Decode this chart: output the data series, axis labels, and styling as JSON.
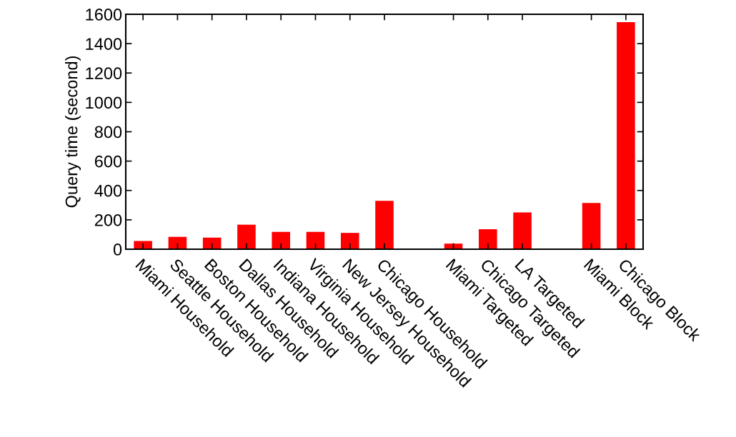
{
  "chart_data": {
    "type": "bar",
    "ylabel": "Query time (second)",
    "categories": [
      "Miami Household",
      "Seattle Household",
      "Boston Household",
      "Dallas Household",
      "Indiana Household",
      "Virginia Household",
      "New Jersey Household",
      "Chicago Household",
      null,
      "Miami Targeted",
      "Chicago Targeted",
      "LA Targeted",
      null,
      "Miami Block",
      "Chicago Block"
    ],
    "values": [
      56,
      84,
      79,
      167,
      118,
      118,
      111,
      330,
      null,
      38,
      136,
      251,
      null,
      315,
      1547
    ],
    "color": "#ff0000",
    "ylim": [
      0,
      1600
    ],
    "yticks": [
      0,
      200,
      400,
      600,
      800,
      1000,
      1200,
      1400,
      1600
    ],
    "grid": false,
    "legend": false
  }
}
